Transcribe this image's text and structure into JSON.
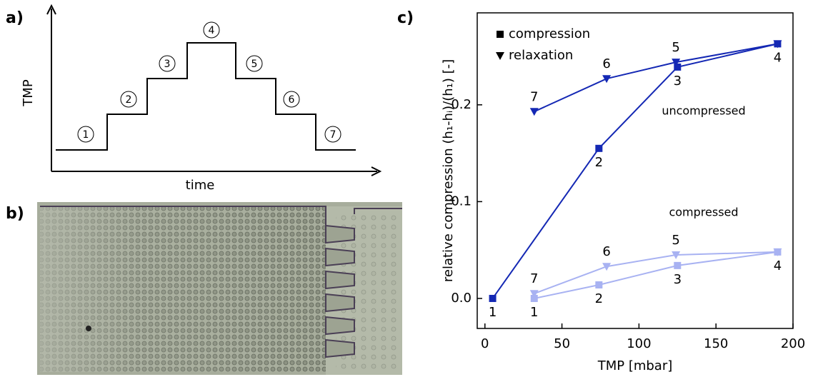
{
  "panel_a": {
    "label": "a)",
    "y_label": "TMP",
    "x_label": "time",
    "steps": [
      "1",
      "2",
      "3",
      "4",
      "5",
      "6",
      "7"
    ]
  },
  "panel_b": {
    "label": "b)"
  },
  "panel_c": {
    "label": "c)"
  },
  "chart_data": {
    "type": "line",
    "x_label": "TMP [mbar]",
    "y_label": "relative compression (h₁-hᵢ)/(h₁) [-]",
    "xlim": [
      -5,
      200
    ],
    "ylim": [
      -0.031,
      0.295
    ],
    "xticks": [
      0,
      50,
      100,
      150,
      200
    ],
    "yticks": [
      {
        "value": 0,
        "label": "0.0"
      },
      0.1,
      0.2
    ],
    "legend": [
      {
        "label": "compression",
        "marker": "square"
      },
      {
        "label": "relaxation",
        "marker": "triangle"
      }
    ],
    "legend_position": "upper left",
    "annotations": [
      "uncompressed",
      "compressed"
    ],
    "series": [
      {
        "marker": "square",
        "color": "#1428b4",
        "x": [
          5,
          74,
          125,
          190
        ],
        "values": [
          0,
          0.155,
          0.239,
          0.263
        ],
        "point_labels": [
          "1",
          "2",
          "3",
          "4"
        ]
      },
      {
        "marker": "triangle",
        "color": "#1428b4",
        "x": [
          190,
          124,
          79,
          32
        ],
        "values": [
          0.263,
          0.244,
          0.227,
          0.193
        ],
        "point_labels": [
          null,
          "5",
          "6",
          "7"
        ]
      },
      {
        "marker": "square",
        "color": "#a8b2f2",
        "x": [
          32,
          74,
          125,
          190
        ],
        "values": [
          0,
          0.014,
          0.034,
          0.048
        ],
        "point_labels": [
          "1",
          "2",
          "3",
          "4"
        ]
      },
      {
        "marker": "triangle",
        "color": "#a8b2f2",
        "x": [
          190,
          124,
          79,
          32
        ],
        "values": [
          0.048,
          0.045,
          0.033,
          0.005
        ],
        "point_labels": [
          null,
          "5",
          "6",
          "7"
        ]
      }
    ]
  }
}
